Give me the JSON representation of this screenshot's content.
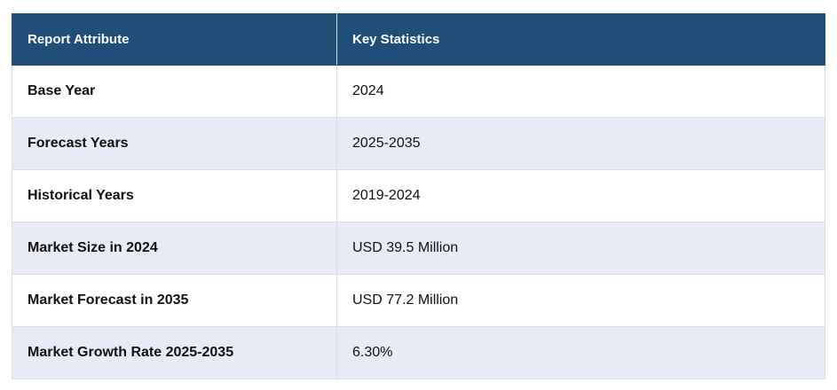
{
  "table": {
    "headers": [
      "Report Attribute",
      "Key Statistics"
    ],
    "rows": [
      [
        "Base Year",
        "2024"
      ],
      [
        "Forecast Years",
        "2025-2035"
      ],
      [
        "Historical Years",
        "2019-2024"
      ],
      [
        "Market Size in 2024",
        "USD 39.5 Million"
      ],
      [
        "Market Forecast in 2035",
        "USD 77.2 Million"
      ],
      [
        "Market Growth Rate 2025-2035",
        "6.30%"
      ]
    ]
  },
  "colors": {
    "header_bg": "#1f4e79",
    "header_text": "#ffffff",
    "row_alt_bg": "#e8ebf5",
    "row_bg": "#ffffff"
  }
}
